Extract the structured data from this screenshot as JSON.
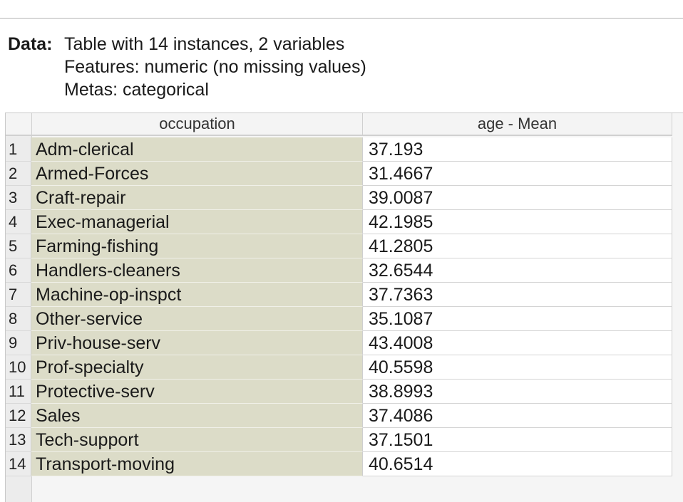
{
  "info": {
    "label": "Data:",
    "line1": "Table with 14 instances, 2 variables",
    "line2": "Features: numeric (no missing values)",
    "line3": "Metas: categorical"
  },
  "table": {
    "columns": [
      "occupation",
      "age - Mean"
    ],
    "rows": [
      {
        "index": "1",
        "occupation": "Adm-clerical",
        "age_mean": "37.193"
      },
      {
        "index": "2",
        "occupation": "Armed-Forces",
        "age_mean": "31.4667"
      },
      {
        "index": "3",
        "occupation": "Craft-repair",
        "age_mean": "39.0087"
      },
      {
        "index": "4",
        "occupation": "Exec-managerial",
        "age_mean": "42.1985"
      },
      {
        "index": "5",
        "occupation": "Farming-fishing",
        "age_mean": "41.2805"
      },
      {
        "index": "6",
        "occupation": "Handlers-cleaners",
        "age_mean": "32.6544"
      },
      {
        "index": "7",
        "occupation": "Machine-op-inspct",
        "age_mean": "37.7363"
      },
      {
        "index": "8",
        "occupation": "Other-service",
        "age_mean": "35.1087"
      },
      {
        "index": "9",
        "occupation": "Priv-house-serv",
        "age_mean": "43.4008"
      },
      {
        "index": "10",
        "occupation": "Prof-specialty",
        "age_mean": "40.5598"
      },
      {
        "index": "11",
        "occupation": "Protective-serv",
        "age_mean": "38.8993"
      },
      {
        "index": "12",
        "occupation": "Sales",
        "age_mean": "37.4086"
      },
      {
        "index": "13",
        "occupation": "Tech-support",
        "age_mean": "37.1501"
      },
      {
        "index": "14",
        "occupation": "Transport-moving",
        "age_mean": "40.6514"
      }
    ]
  },
  "colors": {
    "meta_column_bg": "#dcdcc8",
    "header_bg": "#f4f4f4"
  }
}
